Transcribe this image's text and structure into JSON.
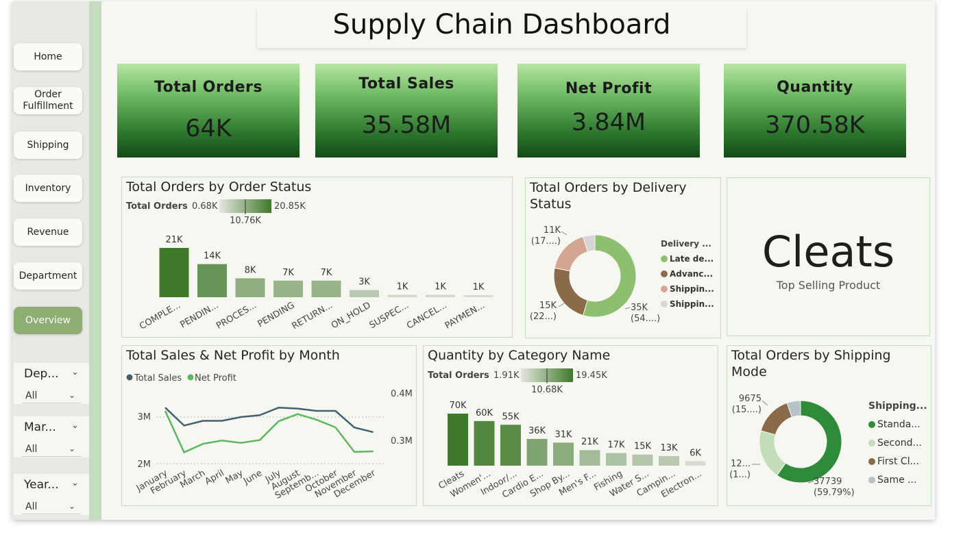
{
  "title": "Supply Chain Dashboard",
  "nav": [
    {
      "id": "home",
      "label": "Home"
    },
    {
      "id": "order-fulfillment",
      "label": "Order\nFulfillment"
    },
    {
      "id": "shipping",
      "label": "Shipping"
    },
    {
      "id": "inventory",
      "label": "Inventory"
    },
    {
      "id": "revenue",
      "label": "Revenue"
    },
    {
      "id": "department",
      "label": "Department"
    },
    {
      "id": "overview",
      "label": "Overview"
    }
  ],
  "slicers": [
    {
      "title": "Dep...",
      "value": "All"
    },
    {
      "title": "Mar...",
      "value": "All"
    },
    {
      "title": "Year...",
      "value": "All"
    }
  ],
  "kpis": {
    "orders": {
      "label": "Total Orders",
      "value": "64K"
    },
    "sales": {
      "label": "Total Sales",
      "value": "35.58M"
    },
    "profit": {
      "label": "Net Profit",
      "value": "3.84M"
    },
    "quantity": {
      "label": "Quantity",
      "value": "370.58K"
    }
  },
  "top_product": {
    "value": "Cleats",
    "label": "Top Selling Product"
  },
  "colors": {
    "accent": "#8daf72",
    "stripe": "#c5dcbf",
    "dark_green": "#3f7a2a",
    "light_green": "#c9d9bf",
    "brown": "#8b6a4a",
    "pink": "#d4a593",
    "grey": "#d6d6d6",
    "slate": "#40616e",
    "line_green": "#5cb85c"
  },
  "chart_data": [
    {
      "id": "order-status",
      "type": "bar",
      "title": "Total Orders by Order Status",
      "legend_title": "Total Orders",
      "gradient": {
        "min": "0.68K",
        "mid": "10.76K",
        "max": "20.85K"
      },
      "categories": [
        "COMPLE...",
        "PENDIN...",
        "PROCES...",
        "PENDING",
        "RETURN...",
        "ON_HOLD",
        "SUSPEC...",
        "CANCEL...",
        "PAYMEN..."
      ],
      "values": [
        20.85,
        14.0,
        8.0,
        7.0,
        7.0,
        3.0,
        1.0,
        1.0,
        0.68
      ],
      "labels": [
        "21K",
        "14K",
        "8K",
        "7K",
        "7K",
        "3K",
        "1K",
        "1K",
        "1K"
      ]
    },
    {
      "id": "delivery-status",
      "type": "pie",
      "title": "Total Orders by Delivery Status",
      "legend_title": "Delivery ...",
      "legend": [
        "Late de...",
        "Advanc...",
        "Shippin...",
        "Shippin..."
      ],
      "values": [
        35,
        15,
        11,
        3
      ],
      "labels": [
        [
          "35K",
          "(54....)"
        ],
        [
          "15K",
          "(22...)"
        ],
        [
          "11K",
          "(17....)"
        ],
        [
          "",
          ""
        ]
      ]
    },
    {
      "id": "sales-profit-month",
      "type": "line",
      "title": "Total Sales & Net Profit by Month",
      "legend": [
        "Total Sales",
        "Net Profit"
      ],
      "x": [
        "January",
        "February",
        "March",
        "April",
        "May",
        "June",
        "July",
        "August",
        "Septemb...",
        "October",
        "November",
        "December"
      ],
      "series": [
        {
          "name": "Total Sales",
          "values": [
            3.2,
            2.82,
            2.92,
            2.92,
            3.0,
            3.04,
            3.2,
            3.18,
            3.13,
            3.13,
            2.78,
            2.68
          ]
        },
        {
          "name": "Net Profit",
          "values": [
            0.364,
            0.276,
            0.294,
            0.301,
            0.296,
            0.302,
            0.342,
            0.357,
            0.345,
            0.329,
            0.277,
            0.278
          ]
        }
      ],
      "y_ticks": [
        "3M",
        "2M"
      ],
      "y2_ticks": [
        "0.4M",
        "0.3M"
      ]
    },
    {
      "id": "quantity-category",
      "type": "bar",
      "title": "Quantity by Category Name",
      "legend_title": "Total Orders",
      "gradient": {
        "min": "1.91K",
        "mid": "10.68K",
        "max": "19.45K"
      },
      "categories": [
        "Cleats",
        "Women'...",
        "Indoor/...",
        "Cardio E...",
        "Shop By...",
        "Men's F...",
        "Fishing",
        "Water S...",
        "Campin...",
        "Electron..."
      ],
      "values": [
        70,
        60,
        55,
        36,
        31,
        21,
        17,
        15,
        13,
        6
      ],
      "labels": [
        "70K",
        "60K",
        "55K",
        "36K",
        "31K",
        "21K",
        "17K",
        "15K",
        "13K",
        "6K"
      ]
    },
    {
      "id": "shipping-mode",
      "type": "pie",
      "title": "Total Orders by Shipping Mode",
      "legend_title": "Shipping...",
      "legend": [
        "Standa...",
        "Second...",
        "First Cl...",
        "Same ..."
      ],
      "values": [
        37739,
        12400,
        9675,
        3400
      ],
      "labels": [
        [
          "37739",
          "(59.79%)"
        ],
        [
          "12...",
          "(1...)"
        ],
        [
          "9675",
          "(15....)"
        ],
        [
          "",
          ""
        ]
      ]
    }
  ]
}
